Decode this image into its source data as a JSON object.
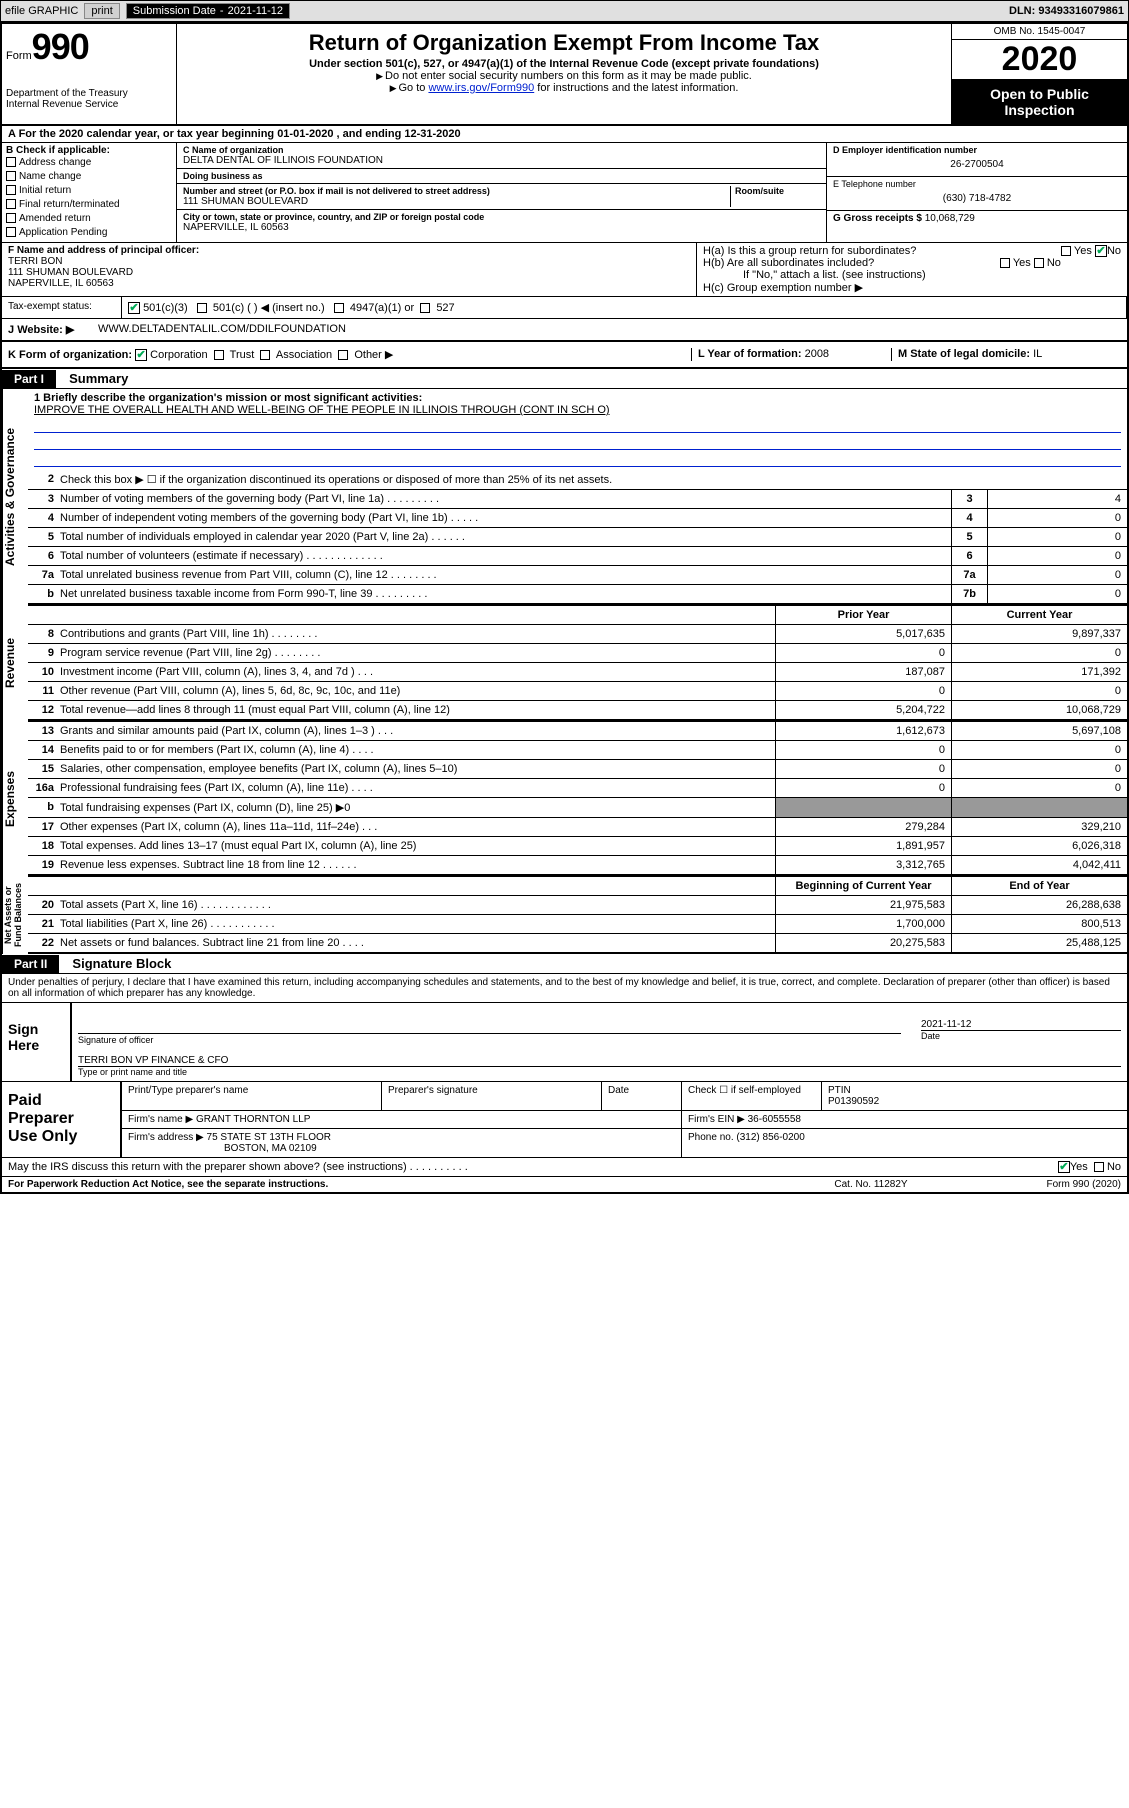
{
  "colors": {
    "black": "#000000",
    "link_blue": "#0021d0",
    "header_gray": "#e0e0e0",
    "check_green": "#00aa55"
  },
  "top_bar": {
    "efile_label": "efile GRAPHIC",
    "print_btn": "print",
    "submission_label": "Submission Date",
    "submission_date": "2021-11-12",
    "dln_label": "DLN:",
    "dln_value": "93493316079861"
  },
  "header": {
    "form_word": "Form",
    "form_num": "990",
    "dept": "Department of the Treasury\nInternal Revenue Service",
    "title": "Return of Organization Exempt From Income Tax",
    "subtitle": "Under section 501(c), 527, or 4947(a)(1) of the Internal Revenue Code (except private foundations)",
    "note1": "Do not enter social security numbers on this form as it may be made public.",
    "note2_pre": "Go to ",
    "note2_link": "www.irs.gov/Form990",
    "note2_post": " for instructions and the latest information.",
    "omb": "OMB No. 1545-0047",
    "year": "2020",
    "open_public": "Open to Public\nInspection"
  },
  "period_line": "A  For the 2020 calendar year, or tax year beginning 01-01-2020     , and ending 12-31-2020",
  "section_b": {
    "heading": "B Check if applicable:",
    "opts": [
      "Address change",
      "Name change",
      "Initial return",
      "Final return/terminated",
      "Amended return",
      "Application Pending"
    ]
  },
  "section_c": {
    "name_label": "C Name of organization",
    "name_value": "DELTA DENTAL OF ILLINOIS FOUNDATION",
    "dba_label": "Doing business as",
    "dba_value": "",
    "street_label": "Number and street (or P.O. box if mail is not delivered to street address)",
    "room_label": "Room/suite",
    "street_value": "111 SHUMAN BOULEVARD",
    "city_label": "City or town, state or province, country, and ZIP or foreign postal code",
    "city_value": "NAPERVILLE, IL  60563"
  },
  "section_d": {
    "ein_label": "D Employer identification number",
    "ein_value": "26-2700504",
    "phone_label": "E Telephone number",
    "phone_value": "(630) 718-4782",
    "gross_label": "G Gross receipts $",
    "gross_value": "10,068,729"
  },
  "section_f": {
    "label": "F Name and address of principal officer:",
    "name": "TERRI BON",
    "addr1": "111 SHUMAN BOULEVARD",
    "addr2": "NAPERVILLE, IL  60563"
  },
  "section_h": {
    "h_a": "H(a)  Is this a group return for subordinates?",
    "h_b": "H(b)  Are all subordinates included?",
    "h_note": "If \"No,\" attach a list. (see instructions)",
    "h_c": "H(c)  Group exemption number ▶",
    "yes": "Yes",
    "no": "No"
  },
  "tax_exempt": {
    "label": "Tax-exempt status:",
    "o501c3": "501(c)(3)",
    "o501c": "501(c) (   ) ◀ (insert no.)",
    "o4947": "4947(a)(1) or",
    "o527": "527"
  },
  "j_row": {
    "label": "J",
    "text": "Website: ▶",
    "value": "WWW.DELTADENTALIL.COM/DDILFOUNDATION"
  },
  "k_row": {
    "label": "K Form of organization:",
    "corp": "Corporation",
    "trust": "Trust",
    "assoc": "Association",
    "other": "Other ▶",
    "l_label": "L Year of formation:",
    "l_value": "2008",
    "m_label": "M State of legal domicile:",
    "m_value": "IL"
  },
  "part1": {
    "badge": "Part I",
    "title": "Summary"
  },
  "mission": {
    "line1_label": "1  Briefly describe the organization's mission or most significant activities:",
    "line1_value": "IMPROVE THE OVERALL HEALTH AND WELL-BEING OF THE PEOPLE IN ILLINOIS THROUGH (CONT IN SCH O)"
  },
  "governance_lines": [
    {
      "n": "2",
      "t": "Check this box ▶ ☐  if the organization discontinued its operations or disposed of more than 25% of its net assets.",
      "box": "",
      "val": ""
    },
    {
      "n": "3",
      "t": "Number of voting members of the governing body (Part VI, line 1a)  .   .   .   .   .   .   .   .   .",
      "box": "3",
      "val": "4"
    },
    {
      "n": "4",
      "t": "Number of independent voting members of the governing body (Part VI, line 1b)  .   .   .   .   .",
      "box": "4",
      "val": "0"
    },
    {
      "n": "5",
      "t": "Total number of individuals employed in calendar year 2020 (Part V, line 2a)  .   .   .   .   .   .",
      "box": "5",
      "val": "0"
    },
    {
      "n": "6",
      "t": "Total number of volunteers (estimate if necessary)  .   .   .   .   .   .   .   .   .   .   .   .   .",
      "box": "6",
      "val": "0"
    },
    {
      "n": "7a",
      "t": "Total unrelated business revenue from Part VIII, column (C), line 12  .   .   .   .   .   .   .   .",
      "box": "7a",
      "val": "0"
    },
    {
      "n": "b",
      "t": "Net unrelated business taxable income from Form 990-T, line 39  .   .   .   .   .   .   .   .   .",
      "box": "7b",
      "val": "0"
    }
  ],
  "col_headers": {
    "prior": "Prior Year",
    "current": "Current Year",
    "boy": "Beginning of Current Year",
    "eoy": "End of Year"
  },
  "revenue_lines": [
    {
      "n": "8",
      "t": "Contributions and grants (Part VIII, line 1h)  .   .   .   .   .   .   .   .",
      "c1": "5,017,635",
      "c2": "9,897,337"
    },
    {
      "n": "9",
      "t": "Program service revenue (Part VIII, line 2g)  .   .   .   .   .   .   .   .",
      "c1": "0",
      "c2": "0"
    },
    {
      "n": "10",
      "t": "Investment income (Part VIII, column (A), lines 3, 4, and 7d )  .   .   .",
      "c1": "187,087",
      "c2": "171,392"
    },
    {
      "n": "11",
      "t": "Other revenue (Part VIII, column (A), lines 5, 6d, 8c, 9c, 10c, and 11e)",
      "c1": "0",
      "c2": "0"
    },
    {
      "n": "12",
      "t": "Total revenue—add lines 8 through 11 (must equal Part VIII, column (A), line 12)",
      "c1": "5,204,722",
      "c2": "10,068,729"
    }
  ],
  "expense_lines": [
    {
      "n": "13",
      "t": "Grants and similar amounts paid (Part IX, column (A), lines 1–3 )  .   .   .",
      "c1": "1,612,673",
      "c2": "5,697,108"
    },
    {
      "n": "14",
      "t": "Benefits paid to or for members (Part IX, column (A), line 4)  .   .   .   .",
      "c1": "0",
      "c2": "0"
    },
    {
      "n": "15",
      "t": "Salaries, other compensation, employee benefits (Part IX, column (A), lines 5–10)",
      "c1": "0",
      "c2": "0"
    },
    {
      "n": "16a",
      "t": "Professional fundraising fees (Part IX, column (A), line 11e)  .   .   .   .",
      "c1": "0",
      "c2": "0"
    },
    {
      "n": "b",
      "t": "Total fundraising expenses (Part IX, column (D), line 25) ▶0",
      "c1": "",
      "c2": ""
    },
    {
      "n": "17",
      "t": "Other expenses (Part IX, column (A), lines 11a–11d, 11f–24e)  .   .   .",
      "c1": "279,284",
      "c2": "329,210"
    },
    {
      "n": "18",
      "t": "Total expenses. Add lines 13–17 (must equal Part IX, column (A), line 25)",
      "c1": "1,891,957",
      "c2": "6,026,318"
    },
    {
      "n": "19",
      "t": "Revenue less expenses. Subtract line 18 from line 12  .   .   .   .   .   .",
      "c1": "3,312,765",
      "c2": "4,042,411"
    }
  ],
  "netasset_lines": [
    {
      "n": "20",
      "t": "Total assets (Part X, line 16)  .   .   .   .   .   .   .   .   .   .   .   .",
      "c1": "21,975,583",
      "c2": "26,288,638"
    },
    {
      "n": "21",
      "t": "Total liabilities (Part X, line 26)  .   .   .   .   .   .   .   .   .   .   .",
      "c1": "1,700,000",
      "c2": "800,513"
    },
    {
      "n": "22",
      "t": "Net assets or fund balances. Subtract line 21 from line 20  .   .   .   .",
      "c1": "20,275,583",
      "c2": "25,488,125"
    }
  ],
  "part2": {
    "badge": "Part II",
    "title": "Signature Block"
  },
  "sig_declaration": "Under penalties of perjury, I declare that I have examined this return, including accompanying schedules and statements, and to the best of my knowledge and belief, it is true, correct, and complete. Declaration of preparer (other than officer) is based on all information of which preparer has any knowledge.",
  "sign_here": {
    "label": "Sign\nHere",
    "sig_label": "Signature of officer",
    "date_label": "Date",
    "date_value": "2021-11-12",
    "name_title": "TERRI BON  VP FINANCE & CFO",
    "name_title_label": "Type or print name and title"
  },
  "paid_prep": {
    "label": "Paid\nPreparer\nUse Only",
    "h_print": "Print/Type preparer's name",
    "h_sig": "Preparer's signature",
    "h_date": "Date",
    "h_check": "Check ☐ if self-employed",
    "h_ptin": "PTIN",
    "ptin": "P01390592",
    "firm_name_l": "Firm's name    ▶",
    "firm_name_v": "GRANT THORNTON LLP",
    "firm_ein_l": "Firm's EIN ▶",
    "firm_ein_v": "36-6055558",
    "firm_addr_l": "Firm's address ▶",
    "firm_addr_v1": "75 STATE ST 13TH FLOOR",
    "firm_addr_v2": "BOSTON, MA  02109",
    "phone_l": "Phone no.",
    "phone_v": "(312) 856-0200"
  },
  "discuss_line": "May the IRS discuss this return with the preparer shown above? (see instructions)  .   .   .   .   .   .   .   .   .   .",
  "footer": {
    "left": "For Paperwork Reduction Act Notice, see the separate instructions.",
    "mid": "Cat. No. 11282Y",
    "right": "Form 990 (2020)"
  },
  "vlabels": {
    "gov": "Activities & Governance",
    "rev": "Revenue",
    "exp": "Expenses",
    "net": "Net Assets or\nFund Balances"
  }
}
